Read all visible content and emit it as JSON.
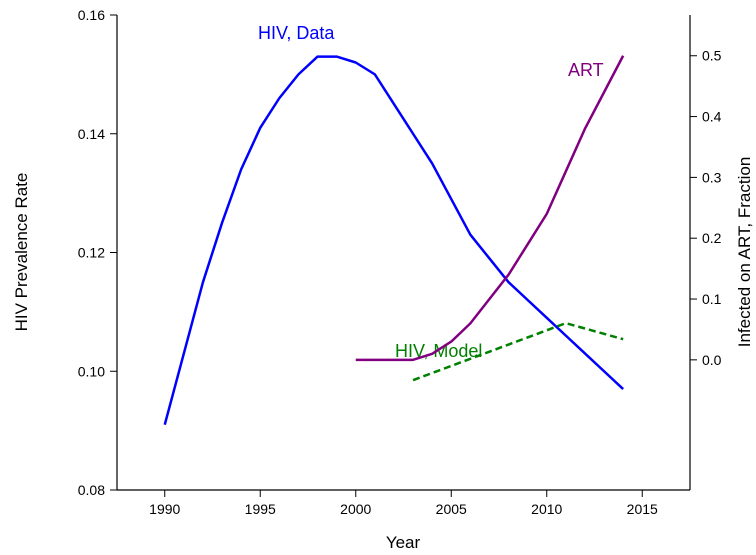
{
  "chart_data": {
    "type": "line",
    "xlabel": "Year",
    "ylabel": "HIV Prevalence Rate",
    "y2label": "Infected on ART, Fraction",
    "y2label_color": "#800080",
    "xlim": [
      1987.5,
      2017.5
    ],
    "xticks": [
      1990,
      1995,
      2000,
      2005,
      2010,
      2015
    ],
    "ylim": [
      0.08,
      0.16
    ],
    "yticks": [
      {
        "value": 0.08,
        "label": "0.08"
      },
      {
        "value": 0.1,
        "label": "0.10"
      },
      {
        "value": 0.12,
        "label": "0.12"
      },
      {
        "value": 0.14,
        "label": "0.14"
      },
      {
        "value": 0.16,
        "label": "0.16"
      }
    ],
    "y2lim": [
      -0.214,
      0.567
    ],
    "y2ticks": [
      {
        "value": 0,
        "label": "0.0"
      },
      0.1,
      0.2,
      0.3,
      0.4,
      0.5
    ],
    "series": [
      {
        "name": "HIV, Data",
        "color": "#0000ff",
        "dashed": false,
        "axis": "y",
        "x": [
          1990,
          1991,
          1992,
          1993,
          1994,
          1995,
          1996,
          1997,
          1998,
          1999,
          2000,
          2001,
          2002,
          2003,
          2004,
          2005,
          2006,
          2007,
          2008,
          2009,
          2010,
          2011,
          2012,
          2013,
          2014
        ],
        "values": [
          0.091,
          0.103,
          0.115,
          0.125,
          0.134,
          0.141,
          0.146,
          0.15,
          0.153,
          0.153,
          0.152,
          0.15,
          0.145,
          0.14,
          0.135,
          0.129,
          0.123,
          0.119,
          0.115,
          0.112,
          0.109,
          0.106,
          0.103,
          0.1,
          0.097
        ]
      },
      {
        "name": "HIV, Model",
        "color": "#008000",
        "dashed": true,
        "axis": "y",
        "x": [
          2003,
          2004,
          2005,
          2006,
          2007,
          2008,
          2009,
          2010,
          2011,
          2012,
          2013,
          2014
        ],
        "values": [
          0.0985,
          0.0997,
          0.1009,
          0.1021,
          0.1033,
          0.1045,
          0.1057,
          0.1069,
          0.1081,
          0.1072,
          0.1063,
          0.1054
        ]
      },
      {
        "name": "ART",
        "color": "#800080",
        "dashed": false,
        "axis": "y2",
        "x": [
          2000,
          2001,
          2002,
          2003,
          2004,
          2005,
          2006,
          2007,
          2008,
          2009,
          2010,
          2011,
          2012,
          2013,
          2014
        ],
        "values": [
          0,
          0,
          0,
          0,
          0.01,
          0.03,
          0.06,
          0.1,
          0.14,
          0.19,
          0.24,
          0.31,
          0.38,
          0.44,
          0.5
        ]
      }
    ]
  }
}
